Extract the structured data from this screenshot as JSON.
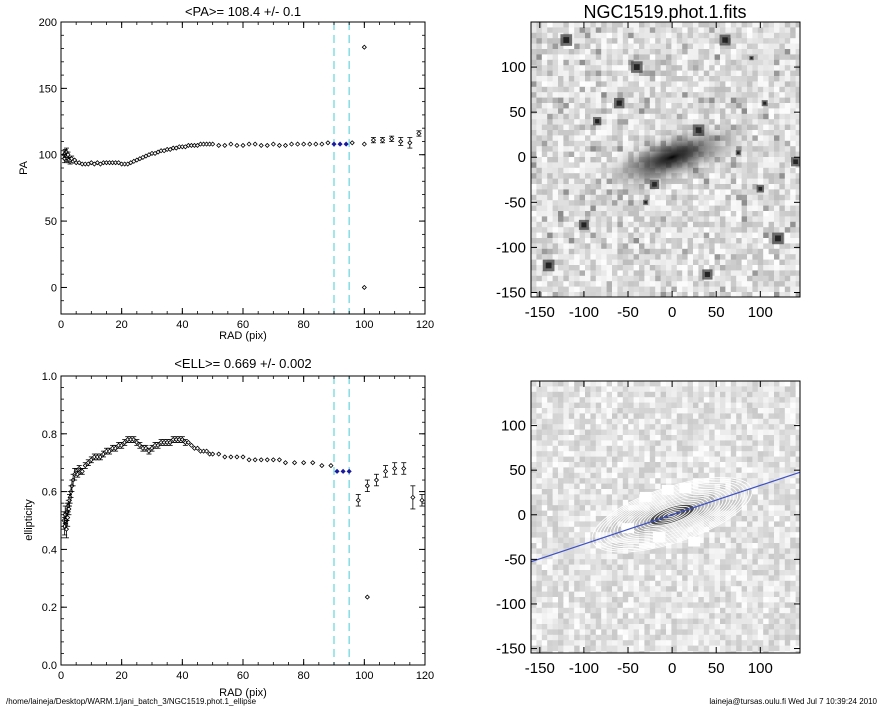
{
  "footer": {
    "path": "/home/laineja/Desktop/WARM.1/jani_batch_3/NGC1519.phot.1_ellipse",
    "user_stamp": "laineja@tursas.oulu.fi  Wed Jul  7 10:39:24 2010"
  },
  "colors": {
    "data_marker": "#000000",
    "selected_marker": "#1a1aa0",
    "range_line": "#66d4e0",
    "pa_line": "#3c50c8",
    "contour": "#ffffff"
  },
  "chart_data": [
    {
      "type": "scatter",
      "title": "<PA>= 108.4 +/-   0.1",
      "xlabel": "RAD (pix)",
      "ylabel": "PA",
      "xlim": [
        0,
        120
      ],
      "ylim": [
        -20,
        200
      ],
      "xticks": [
        0,
        20,
        40,
        60,
        80,
        100,
        120
      ],
      "yticks": [
        0,
        50,
        100,
        150,
        200
      ],
      "vlines": [
        90,
        95
      ],
      "selected_range": [
        90,
        95
      ],
      "series": [
        {
          "x": [
            1,
            1.2,
            1.4,
            1.6,
            1.8,
            2,
            2.3,
            2.6,
            3,
            3.5,
            4,
            4.5,
            5,
            6,
            7,
            8,
            9,
            10,
            11,
            12,
            13,
            14,
            15,
            16,
            17,
            18,
            19,
            20,
            21,
            22,
            23,
            24,
            25,
            26,
            27,
            28,
            29,
            30,
            31,
            32,
            33,
            34,
            35,
            36,
            37,
            38,
            39,
            40,
            41,
            42,
            43,
            44,
            45,
            46,
            47,
            48,
            49,
            50,
            52,
            54,
            56,
            58,
            60,
            62,
            64,
            66,
            68,
            70,
            72,
            74,
            76,
            78,
            80,
            82,
            84,
            86,
            88,
            90,
            92,
            94,
            96,
            100,
            103,
            106,
            109,
            112,
            115,
            118,
            121
          ],
          "y": [
            100,
            97,
            101,
            99,
            102,
            98,
            100,
            96,
            95,
            97,
            95,
            96,
            94,
            94,
            93,
            93,
            93,
            94,
            93,
            94,
            93,
            94,
            94,
            94,
            94,
            94,
            94,
            93,
            93,
            93,
            94,
            95,
            96,
            97,
            98,
            99,
            100,
            101,
            101,
            102,
            103,
            103,
            104,
            104,
            105,
            105,
            106,
            106,
            106,
            107,
            107,
            107,
            107,
            108,
            108,
            108,
            108,
            108,
            107,
            107,
            108,
            107,
            107,
            108,
            108,
            107,
            107,
            108,
            107,
            107,
            108,
            108,
            108,
            108,
            108,
            108,
            109,
            108,
            108,
            108,
            109,
            108,
            111,
            111,
            112,
            110,
            109,
            116,
            110
          ],
          "yerr": [
            3,
            3,
            3,
            3,
            3,
            3,
            2,
            2,
            2,
            2,
            1,
            1,
            1,
            1,
            1,
            1,
            1,
            1,
            1,
            1,
            1,
            1,
            1,
            1,
            1,
            1,
            1,
            1,
            1,
            1,
            1,
            1,
            1,
            1,
            1,
            1,
            1,
            1,
            1,
            1,
            1,
            1,
            1,
            1,
            1,
            1,
            1,
            1,
            1,
            1,
            1,
            1,
            1,
            1,
            1,
            1,
            1,
            1,
            1,
            1,
            1,
            1,
            1,
            1,
            1,
            1,
            1,
            1,
            1,
            1,
            1,
            1,
            1,
            1,
            1,
            1,
            1,
            1,
            1,
            1,
            1,
            1,
            2,
            2,
            2,
            3,
            4,
            2,
            5
          ]
        }
      ],
      "outliers": [
        {
          "x": 100,
          "y": 181
        },
        {
          "x": 100,
          "y": 0
        }
      ]
    },
    {
      "type": "scatter",
      "title": "<ELL>= 0.669 +/-  0.002",
      "xlabel": "RAD (pix)",
      "ylabel": "ellipticity",
      "xlim": [
        0,
        120
      ],
      "ylim": [
        0.0,
        1.0
      ],
      "xticks": [
        0,
        20,
        40,
        60,
        80,
        100,
        120
      ],
      "yticks": [
        0.0,
        0.2,
        0.4,
        0.6,
        0.8,
        1.0
      ],
      "ytick_labels": [
        "0.0",
        "0.2",
        "0.4",
        "0.6",
        "0.8",
        "1.0"
      ],
      "vlines": [
        90,
        95
      ],
      "selected_range": [
        90,
        95
      ],
      "series": [
        {
          "x": [
            1,
            1.2,
            1.4,
            1.6,
            1.8,
            2,
            2.2,
            2.4,
            2.6,
            2.8,
            3,
            3.3,
            3.6,
            4,
            4.5,
            5,
            5.5,
            6,
            6.5,
            7,
            8,
            9,
            10,
            11,
            12,
            13,
            14,
            15,
            16,
            17,
            18,
            19,
            20,
            21,
            22,
            23,
            24,
            25,
            26,
            27,
            28,
            29,
            30,
            31,
            32,
            33,
            34,
            35,
            36,
            37,
            38,
            39,
            40,
            41,
            42,
            43,
            44,
            45,
            46,
            47,
            48,
            49,
            50,
            52,
            54,
            56,
            58,
            60,
            62,
            64,
            66,
            68,
            70,
            72,
            74,
            77,
            80,
            83,
            86,
            89,
            91,
            93,
            95,
            98,
            101,
            104,
            107,
            110,
            113,
            116,
            119
          ],
          "y": [
            0.5,
            0.48,
            0.52,
            0.5,
            0.47,
            0.53,
            0.51,
            0.55,
            0.54,
            0.57,
            0.58,
            0.6,
            0.62,
            0.64,
            0.66,
            0.67,
            0.66,
            0.68,
            0.67,
            0.67,
            0.69,
            0.7,
            0.71,
            0.72,
            0.72,
            0.72,
            0.73,
            0.74,
            0.74,
            0.75,
            0.75,
            0.76,
            0.76,
            0.77,
            0.78,
            0.78,
            0.78,
            0.77,
            0.76,
            0.75,
            0.75,
            0.74,
            0.75,
            0.76,
            0.76,
            0.77,
            0.77,
            0.77,
            0.77,
            0.78,
            0.78,
            0.78,
            0.78,
            0.77,
            0.77,
            0.76,
            0.75,
            0.75,
            0.74,
            0.74,
            0.74,
            0.73,
            0.73,
            0.73,
            0.72,
            0.72,
            0.72,
            0.72,
            0.71,
            0.71,
            0.71,
            0.71,
            0.71,
            0.71,
            0.7,
            0.7,
            0.7,
            0.7,
            0.69,
            0.69,
            0.67,
            0.67,
            0.67,
            0.57,
            0.62,
            0.64,
            0.67,
            0.68,
            0.68,
            0.58,
            0.57
          ],
          "yerr": [
            0.03,
            0.03,
            0.03,
            0.03,
            0.03,
            0.03,
            0.03,
            0.02,
            0.02,
            0.02,
            0.02,
            0.02,
            0.02,
            0.02,
            0.02,
            0.01,
            0.01,
            0.01,
            0.01,
            0.01,
            0.01,
            0.01,
            0.01,
            0.01,
            0.01,
            0.01,
            0.01,
            0.01,
            0.01,
            0.01,
            0.01,
            0.01,
            0.01,
            0.01,
            0.01,
            0.01,
            0.01,
            0.01,
            0.01,
            0.01,
            0.01,
            0.01,
            0.01,
            0.01,
            0.01,
            0.01,
            0.01,
            0.01,
            0.01,
            0.01,
            0.01,
            0.01,
            0.01,
            0.01,
            0.005,
            0.005,
            0.005,
            0.005,
            0.005,
            0.005,
            0.005,
            0.005,
            0.005,
            0.005,
            0.005,
            0.005,
            0.005,
            0.005,
            0.005,
            0.005,
            0.005,
            0.005,
            0.005,
            0.005,
            0.005,
            0.005,
            0.005,
            0.005,
            0.005,
            0.005,
            0.005,
            0.005,
            0.005,
            0.02,
            0.02,
            0.02,
            0.02,
            0.02,
            0.02,
            0.04,
            0.02
          ]
        }
      ],
      "outliers": [
        {
          "x": 101,
          "y": 0.235
        }
      ]
    },
    {
      "type": "heatmap",
      "title": "NGC1519.phot.1.fits",
      "xlim": [
        -160,
        145
      ],
      "ylim": [
        -155,
        150
      ],
      "xticks": [
        -150,
        -100,
        -50,
        0,
        50,
        100
      ],
      "yticks": [
        -150,
        -100,
        -50,
        0,
        50,
        100
      ],
      "galaxy": {
        "center": [
          0,
          0
        ],
        "semi_major": 95,
        "axis_ratio": 0.33,
        "position_angle_deg": 108.4
      }
    },
    {
      "type": "heatmap",
      "title": "",
      "xlim": [
        -160,
        145
      ],
      "ylim": [
        -155,
        150
      ],
      "xticks": [
        -150,
        -100,
        -50,
        0,
        50,
        100
      ],
      "yticks": [
        -150,
        -100,
        -50,
        0,
        50,
        100
      ],
      "overlay": "isophote-contours",
      "pa_line_deg": 108.4,
      "contour_semi_major_max": 95,
      "contour_axis_ratio": 0.33
    }
  ]
}
